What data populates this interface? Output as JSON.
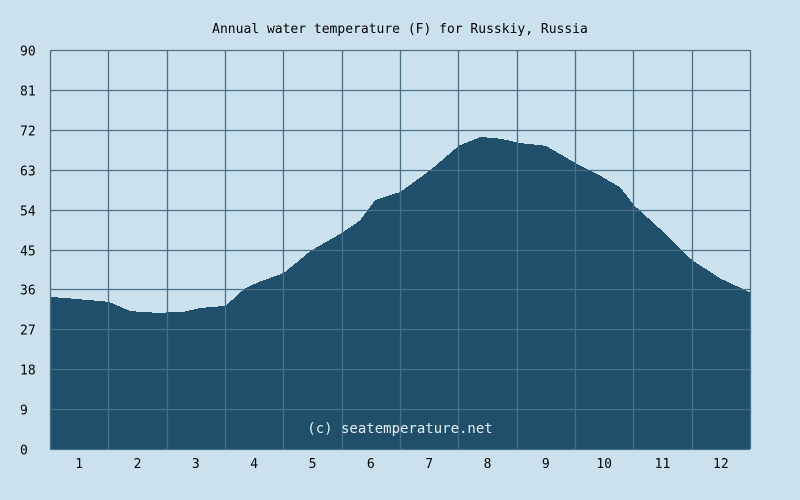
{
  "chart_data": {
    "type": "area",
    "title": "Annual water temperature (F) for Russkiy, Russia",
    "xlabel": "",
    "ylabel": "",
    "ylim": [
      0,
      90
    ],
    "xlim": [
      0,
      12
    ],
    "yticks": [
      "0",
      "9",
      "18",
      "27",
      "36",
      "45",
      "54",
      "63",
      "72",
      "81",
      "90"
    ],
    "xticks": [
      "1",
      "2",
      "3",
      "4",
      "5",
      "6",
      "7",
      "8",
      "9",
      "10",
      "11",
      "12"
    ],
    "grid": true,
    "watermark": "(c) seatemperature.net",
    "series": [
      {
        "name": "Water temperature (F)",
        "x": [
          0,
          0.3,
          1.0,
          1.37,
          1.85,
          2.3,
          2.57,
          3.0,
          3.34,
          3.6,
          4.0,
          4.46,
          4.99,
          5.3,
          5.57,
          6.0,
          6.51,
          7.0,
          7.37,
          7.71,
          8.06,
          8.49,
          9.0,
          9.43,
          9.77,
          10.0,
          10.46,
          11.0,
          11.49,
          12.0
        ],
        "values": [
          34.3,
          34.0,
          33.2,
          31.1,
          30.7,
          31.0,
          31.8,
          32.3,
          36.3,
          37.8,
          39.7,
          44.7,
          48.7,
          51.5,
          56.2,
          58.0,
          62.9,
          68.4,
          70.4,
          70.0,
          69.0,
          68.4,
          64.5,
          61.6,
          59.0,
          55.0,
          49.5,
          42.6,
          38.4,
          35.3
        ]
      }
    ],
    "colors": {
      "background": "#cbe2ee",
      "fill": "#1f4f6b",
      "grid": "#4a6f89",
      "watermark": "#e6eef3"
    }
  }
}
